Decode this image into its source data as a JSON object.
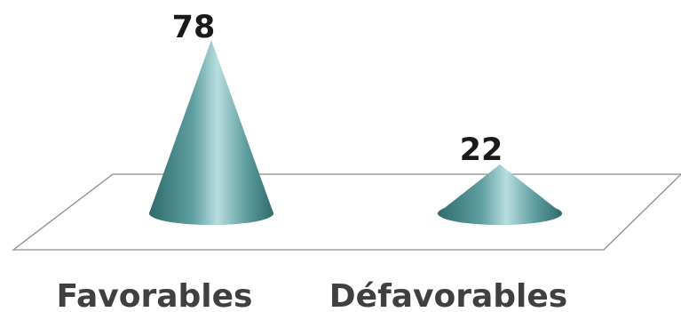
{
  "chart_data": {
    "type": "bar",
    "style": "3d-cone",
    "categories": [
      "Favorables",
      "Défavorables"
    ],
    "values": [
      78,
      22
    ],
    "data_labels": [
      "78",
      "22"
    ],
    "title": "",
    "xlabel": "",
    "ylabel": "",
    "ylim": [
      0,
      78
    ],
    "grid": false,
    "legend": "none",
    "colors": {
      "cone_dark": "#2f6b6b",
      "cone_mid": "#5f9ea0",
      "cone_light": "#b8dede",
      "floor_stroke": "#8c8c8c",
      "floor_fill": "#ffffff"
    }
  }
}
